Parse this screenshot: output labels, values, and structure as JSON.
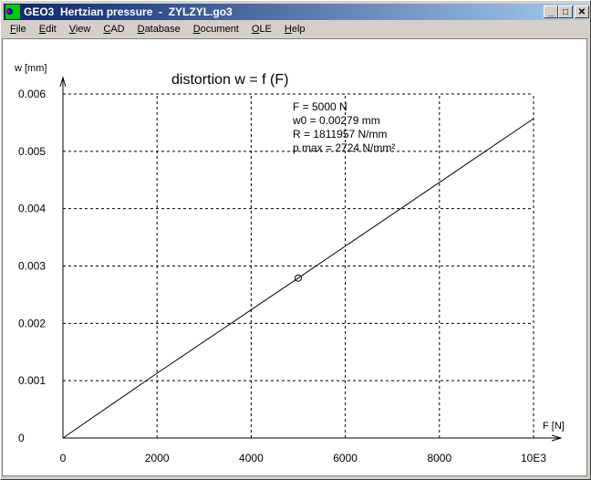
{
  "window": {
    "title": "GEO3  Hertzian pressure  -  ZYLZYL.go3",
    "buttons": [
      "minimize",
      "maximize",
      "close"
    ]
  },
  "menu": [
    "File",
    "Edit",
    "View",
    "CAD",
    "Database",
    "Document",
    "OLE",
    "Help"
  ],
  "chart_data": {
    "type": "line",
    "title": "distortion w = f (F)",
    "xlabel": "F [N]",
    "ylabel": "w [mm]",
    "xlim": [
      0,
      10000
    ],
    "ylim": [
      0,
      0.006
    ],
    "x_ticks": [
      "0",
      "2000",
      "4000",
      "6000",
      "8000",
      "10E3"
    ],
    "y_ticks": [
      "0",
      "0.001",
      "0.002",
      "0.003",
      "0.004",
      "0.005",
      "0.006"
    ],
    "grid": true,
    "series": [
      {
        "x": [
          0,
          2000,
          5000,
          10000
        ],
        "y": [
          0,
          0.00113,
          0.00279,
          0.00557
        ]
      }
    ],
    "marker": {
      "x": 5000,
      "y": 0.00279
    },
    "annotations": [
      "F = 5000 N",
      "w0 = 0.00279 mm",
      "R = 1811957 N/mm",
      "p max = 2724 N/mm²"
    ]
  }
}
